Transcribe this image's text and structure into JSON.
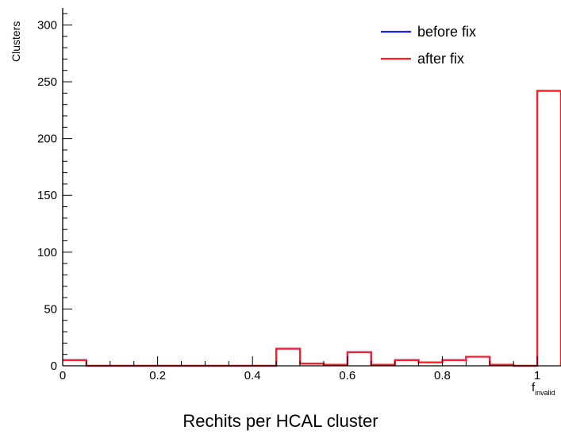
{
  "page": {
    "title": "Rechits per HCAL cluster"
  },
  "chart_data": {
    "type": "histogram",
    "xlabel": "f",
    "xlabel_subscript": "invalid",
    "ylabel": "Clusters",
    "xlim": [
      0,
      1.05
    ],
    "ylim": [
      0,
      315
    ],
    "grid": false,
    "legend_position": "top-right",
    "x_tick_labels": [
      "0",
      "0.2",
      "0.4",
      "0.6",
      "0.8",
      "1"
    ],
    "y_tick_labels": [
      "0",
      "50",
      "100",
      "150",
      "200",
      "250",
      "300"
    ],
    "bin_edges": [
      0,
      0.05,
      0.1,
      0.15,
      0.2,
      0.25,
      0.3,
      0.35,
      0.4,
      0.45,
      0.5,
      0.55,
      0.6,
      0.65,
      0.7,
      0.75,
      0.8,
      0.85,
      0.9,
      0.95,
      1.0,
      1.05
    ],
    "series": [
      {
        "name": "before fix",
        "color": "#1f1fff",
        "values": [
          5,
          0,
          0,
          0,
          0,
          0,
          0,
          0,
          0,
          15,
          2,
          1,
          12,
          1,
          5,
          3,
          5,
          8,
          1,
          0,
          242
        ]
      },
      {
        "name": "after fix",
        "color": "#ff1f1f",
        "values": [
          5,
          0,
          0,
          0,
          0,
          0,
          0,
          0,
          0,
          15,
          2,
          1,
          12,
          1,
          5,
          3,
          5,
          8,
          1,
          0,
          242
        ]
      }
    ]
  }
}
